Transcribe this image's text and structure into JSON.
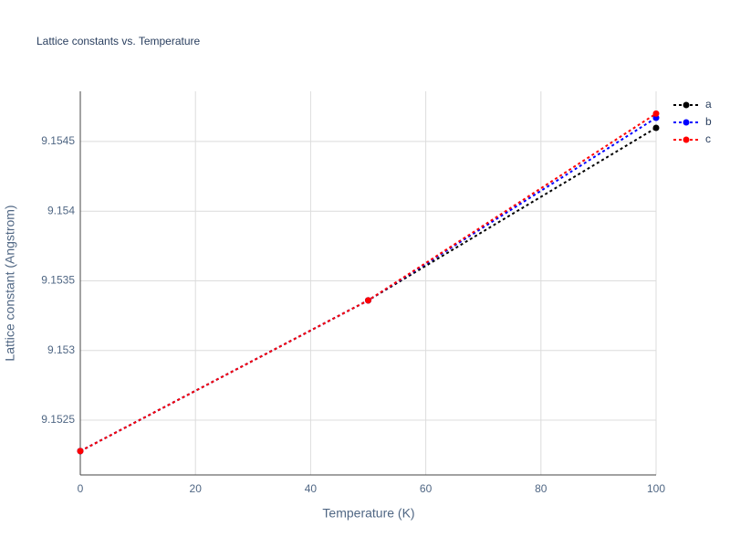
{
  "chart_data": {
    "type": "line",
    "title": "Lattice constants vs. Temperature",
    "x_label": "Temperature (K)",
    "y_label": "Lattice constant (Angstrom)",
    "x": [
      0,
      50,
      100
    ],
    "series": [
      {
        "name": "a",
        "color": "#000000",
        "values": [
          9.152278,
          9.15336,
          9.154598
        ]
      },
      {
        "name": "b",
        "color": "#0000ff",
        "values": [
          9.152278,
          9.15336,
          9.15467
        ]
      },
      {
        "name": "c",
        "color": "#ff0000",
        "values": [
          9.152278,
          9.15336,
          9.1547
        ]
      }
    ],
    "xlim": [
      0,
      100
    ],
    "xticks": [
      0,
      20,
      40,
      60,
      80,
      100
    ],
    "ylim": [
      9.152107,
      9.15486
    ],
    "yticks": [
      9.1525,
      9.153,
      9.1535,
      9.154,
      9.1545
    ],
    "grid": true,
    "legend": "right"
  }
}
